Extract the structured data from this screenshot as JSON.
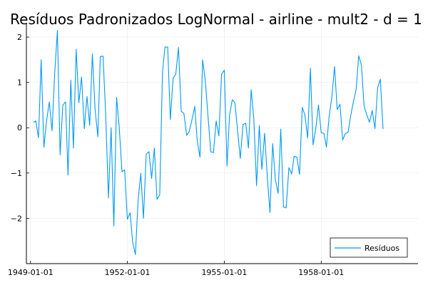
{
  "chart_data": {
    "type": "line",
    "title": "Resíduos Padronizados LogNormal - airline - mult2 - d = 1",
    "xlabel": "",
    "ylabel": "",
    "grid": true,
    "legend_position": "bottom-right",
    "x_type": "date",
    "x_start": "1949-02-01",
    "x_step_months": 1,
    "xlim": [
      "1948-11-15",
      "1960-12-31"
    ],
    "ylim": [
      -3.0,
      2.3
    ],
    "x_ticks": [
      {
        "date": "1949-01-01",
        "label": "1949-01-01"
      },
      {
        "date": "1952-01-01",
        "label": "1952-01-01"
      },
      {
        "date": "1955-01-01",
        "label": "1955-01-01"
      },
      {
        "date": "1958-01-01",
        "label": "1958-01-01"
      }
    ],
    "y_ticks": [
      {
        "value": 2,
        "label": "2"
      },
      {
        "value": 1,
        "label": "1"
      },
      {
        "value": 0,
        "label": "0"
      },
      {
        "value": -1,
        "label": "−1"
      },
      {
        "value": -2,
        "label": "−2"
      }
    ],
    "series": [
      {
        "name": "Resíduos",
        "color": "#009af9",
        "values": [
          0.12,
          0.15,
          -0.22,
          1.5,
          -0.43,
          0.15,
          0.57,
          -0.07,
          1.2,
          2.15,
          -0.6,
          0.5,
          0.57,
          -1.05,
          1.05,
          -0.45,
          1.73,
          0.55,
          1.12,
          -0.02,
          0.69,
          0.05,
          1.63,
          0.4,
          -0.2,
          1.57,
          1.58,
          0.28,
          -1.55,
          0.0,
          -2.17,
          0.67,
          0.01,
          -0.97,
          -0.93,
          -2.02,
          -1.88,
          -2.53,
          -2.8,
          -1.6,
          -1.01,
          -2.0,
          -0.58,
          -0.53,
          -1.12,
          -0.45,
          -1.58,
          -1.48,
          1.22,
          1.78,
          1.78,
          0.18,
          1.09,
          1.18,
          1.77,
          0.36,
          0.32,
          -0.17,
          -0.08,
          0.18,
          0.47,
          -0.28,
          -0.65,
          1.5,
          1.02,
          0.25,
          -0.53,
          -0.55,
          0.15,
          -0.18,
          1.18,
          1.27,
          -0.85,
          0.27,
          0.62,
          0.55,
          -0.07,
          -0.68,
          0.07,
          0.1,
          -0.45,
          0.84,
          0.2,
          -1.28,
          0.05,
          -0.92,
          -0.12,
          -1.08,
          -1.87,
          -0.35,
          -1.15,
          -1.45,
          -0.03,
          -1.75,
          -1.77,
          -0.88,
          -1.02,
          -0.63,
          -0.65,
          -1.03,
          0.45,
          0.28,
          -0.23,
          1.31,
          -0.38,
          -0.02,
          0.5,
          -0.11,
          -0.12,
          -0.43,
          0.25,
          0.67,
          1.35,
          0.4,
          0.52,
          -0.27,
          -0.13,
          -0.1,
          0.27,
          0.58,
          0.85,
          1.59,
          1.38,
          0.48,
          0.28,
          0.12,
          0.38,
          -0.02,
          0.88,
          1.07,
          -0.03
        ]
      }
    ]
  }
}
